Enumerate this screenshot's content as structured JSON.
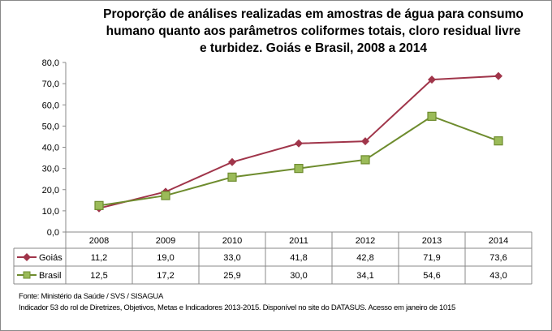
{
  "chart_data": {
    "type": "line",
    "title_lines": [
      "Proporção de análises realizadas em amostras de água para consumo",
      "humano quanto aos parâmetros coliformes totais, cloro residual livre",
      "e turbidez. Goiás e Brasil, 2008 a 2014"
    ],
    "categories": [
      "2008",
      "2009",
      "2010",
      "2011",
      "2012",
      "2013",
      "2014"
    ],
    "series": [
      {
        "name": "Goiás",
        "values": [
          11.2,
          19.0,
          33.0,
          41.8,
          42.8,
          71.9,
          73.6
        ],
        "labels": [
          "11,2",
          "19,0",
          "33,0",
          "41,8",
          "42,8",
          "71,9",
          "73,6"
        ],
        "color": "#A0354A",
        "marker": "diamond"
      },
      {
        "name": "Brasil",
        "values": [
          12.5,
          17.2,
          25.9,
          30.0,
          34.1,
          54.6,
          43.0
        ],
        "labels": [
          "12,5",
          "17,2",
          "25,9",
          "30,0",
          "34,1",
          "54,6",
          "43,0"
        ],
        "color": "#6E8C2E",
        "marker_fill": "#9BBB59",
        "marker": "square"
      }
    ],
    "ylim": [
      0,
      80
    ],
    "yticks": [
      "0,0",
      "10,0",
      "20,0",
      "30,0",
      "40,0",
      "50,0",
      "60,0",
      "70,0",
      "80,0"
    ],
    "grid": false,
    "legend": "data-table"
  },
  "footer": {
    "source": "Fonte: Ministério da Saúde / SVS / SISAGUA",
    "note": "Indicador 53 do rol de Diretrizes, Objetivos, Metas e Indicadores 2013-2015. Disponível no site do DATASUS. Acesso em janeiro de 1015"
  }
}
